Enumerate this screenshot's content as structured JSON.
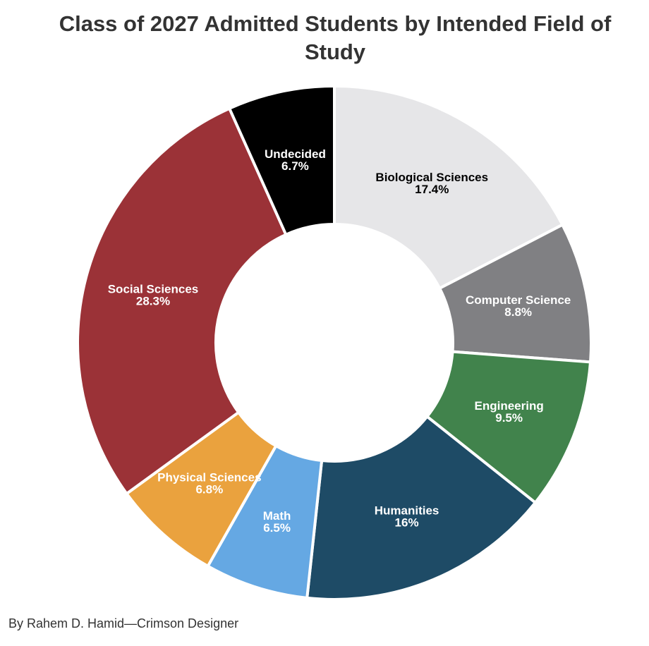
{
  "chart_data": {
    "type": "pie",
    "title": "Class of 2027 Admitted Students by Intended Field of Study",
    "style": "donut",
    "slices": [
      {
        "label": "Biological Sciences",
        "value": 17.4,
        "value_label": "17.4%",
        "color": "#e6e6e8",
        "text_color": "#000000"
      },
      {
        "label": "Computer Science",
        "value": 8.8,
        "value_label": "8.8%",
        "color": "#808083",
        "text_color": "#ffffff"
      },
      {
        "label": "Engineering",
        "value": 9.5,
        "value_label": "9.5%",
        "color": "#41834c",
        "text_color": "#ffffff"
      },
      {
        "label": "Humanities",
        "value": 16,
        "value_label": "16%",
        "color": "#1e4b66",
        "text_color": "#ffffff"
      },
      {
        "label": "Math",
        "value": 6.5,
        "value_label": "6.5%",
        "color": "#65a8e3",
        "text_color": "#ffffff"
      },
      {
        "label": "Physical Sciences",
        "value": 6.8,
        "value_label": "6.8%",
        "color": "#eaa23e",
        "text_color": "#ffffff"
      },
      {
        "label": "Social Sciences",
        "value": 28.3,
        "value_label": "28.3%",
        "color": "#9b3237",
        "text_color": "#ffffff"
      },
      {
        "label": "Undecided",
        "value": 6.7,
        "value_label": "6.7%",
        "color": "#000000",
        "text_color": "#ffffff"
      }
    ]
  },
  "credit": "By Rahem D. Hamid—Crimson Designer"
}
